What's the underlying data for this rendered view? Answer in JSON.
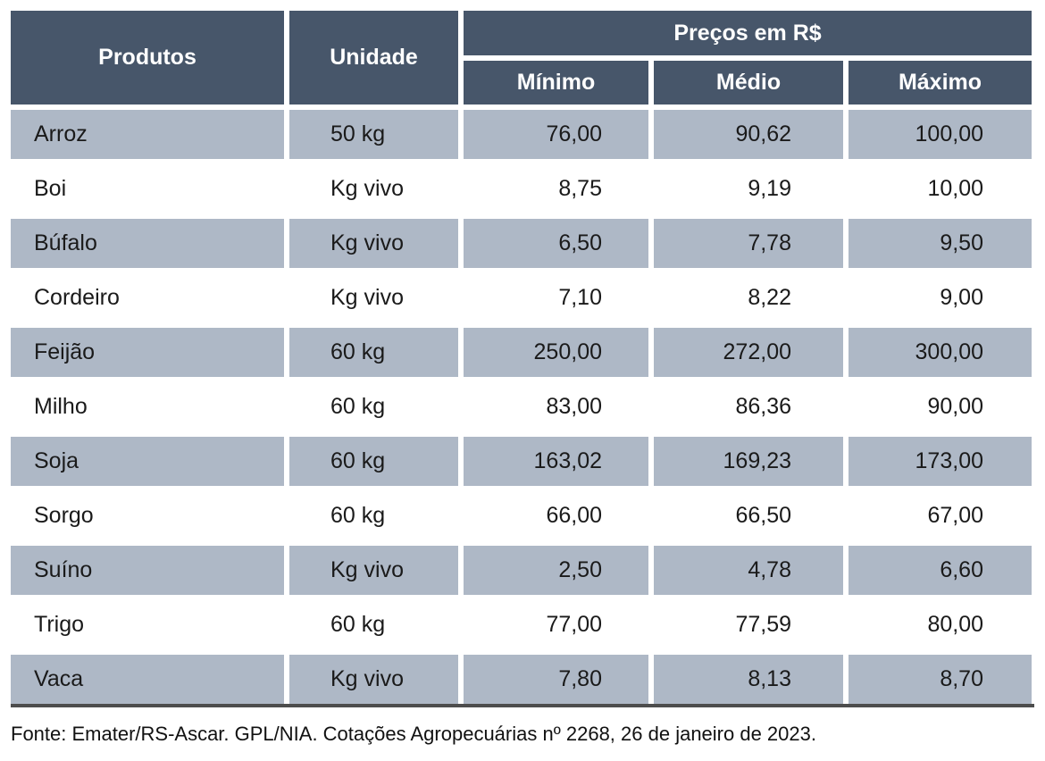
{
  "table": {
    "headers": {
      "produtos": "Produtos",
      "unidade": "Unidade",
      "precos_group": "Preços em R$",
      "minimo": "Mínimo",
      "medio": "Médio",
      "maximo": "Máximo"
    },
    "rows": [
      {
        "produto": "Arroz",
        "unidade": "50 kg",
        "minimo": "76,00",
        "medio": "90,62",
        "maximo": "100,00"
      },
      {
        "produto": "Boi",
        "unidade": "Kg vivo",
        "minimo": "8,75",
        "medio": "9,19",
        "maximo": "10,00"
      },
      {
        "produto": "Búfalo",
        "unidade": "Kg vivo",
        "minimo": "6,50",
        "medio": "7,78",
        "maximo": "9,50"
      },
      {
        "produto": "Cordeiro",
        "unidade": "Kg vivo",
        "minimo": "7,10",
        "medio": "8,22",
        "maximo": "9,00"
      },
      {
        "produto": "Feijão",
        "unidade": "60 kg",
        "minimo": "250,00",
        "medio": "272,00",
        "maximo": "300,00"
      },
      {
        "produto": "Milho",
        "unidade": "60 kg",
        "minimo": "83,00",
        "medio": "86,36",
        "maximo": "90,00"
      },
      {
        "produto": "Soja",
        "unidade": "60 kg",
        "minimo": "163,02",
        "medio": "169,23",
        "maximo": "173,00"
      },
      {
        "produto": "Sorgo",
        "unidade": "60 kg",
        "minimo": "66,00",
        "medio": "66,50",
        "maximo": "67,00"
      },
      {
        "produto": "Suíno",
        "unidade": "Kg vivo",
        "minimo": "2,50",
        "medio": "4,78",
        "maximo": "6,60"
      },
      {
        "produto": "Trigo",
        "unidade": "60 kg",
        "minimo": "77,00",
        "medio": "77,59",
        "maximo": "80,00"
      },
      {
        "produto": "Vaca",
        "unidade": "Kg vivo",
        "minimo": "7,80",
        "medio": "8,13",
        "maximo": "8,70"
      }
    ]
  },
  "footer": {
    "source": "Fonte: Emater/RS-Ascar. GPL/NIA. Cotações Agropecuárias nº 2268, 26 de janeiro de 2023."
  },
  "colors": {
    "header_bg": "#47566A",
    "header_text": "#FFFFFF",
    "row_shaded_bg": "#AEB8C6",
    "body_text": "#1A1A1A",
    "bottom_rule": "#4D4D4D"
  }
}
